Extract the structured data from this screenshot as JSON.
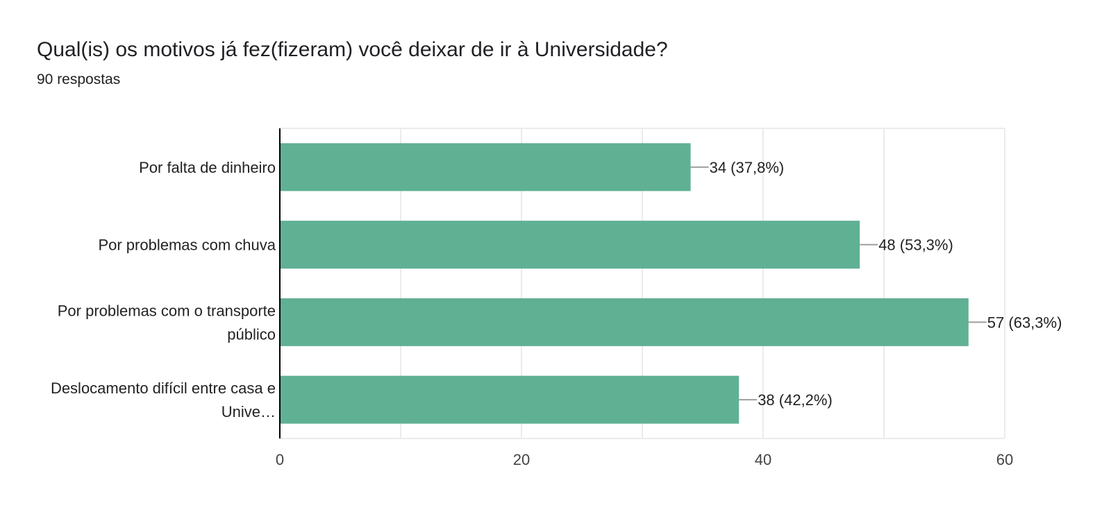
{
  "header": {
    "title": "Qual(is) os motivos já fez(fizeram) você deixar de ir à Universidade?",
    "subtitle": "90 respostas"
  },
  "colors": {
    "bar": "#60b094",
    "grid": "#ebebeb",
    "axis": "#000000",
    "leader": "#9e9e9e"
  },
  "chart_data": {
    "type": "bar",
    "orientation": "horizontal",
    "categories": [
      [
        "Por falta de dinheiro"
      ],
      [
        "Por problemas com chuva"
      ],
      [
        "Por problemas com o transporte",
        "público"
      ],
      [
        "Deslocamento difícil entre casa e",
        "Unive…"
      ]
    ],
    "values": [
      34,
      48,
      57,
      38
    ],
    "value_labels": [
      "34 (37,8%)",
      "48 (53,3%)",
      "57 (63,3%)",
      "38 (42,2%)"
    ],
    "xlim": [
      0,
      60
    ],
    "ticks": [
      0,
      20,
      40,
      60
    ],
    "grid": true
  }
}
